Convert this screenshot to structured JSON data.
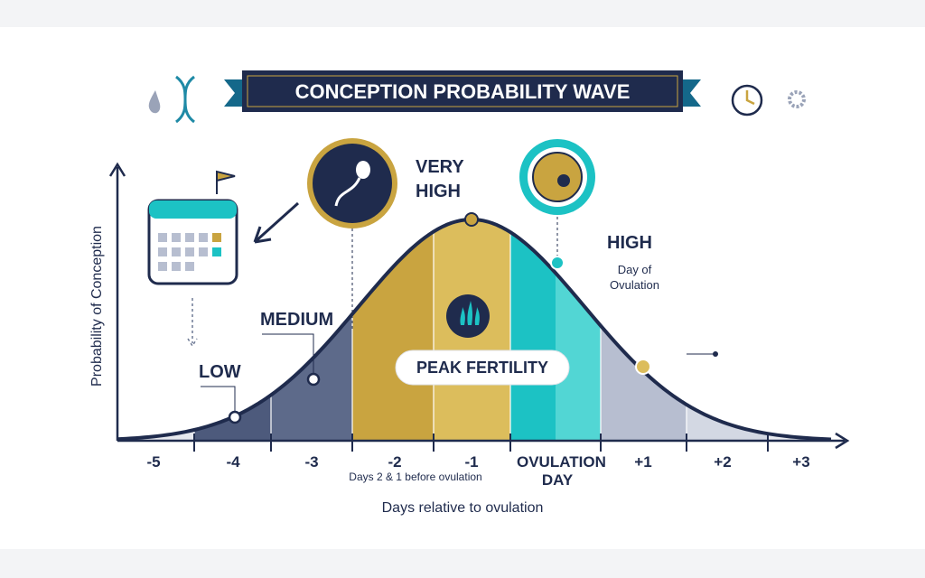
{
  "title": "CONCEPTION PROBABILITY WAVE",
  "y_axis_label": "Probability of Conception",
  "x_axis_label": "Days relative to ovulation",
  "x_labels": [
    "-5",
    "-4",
    "-3",
    "-2",
    "-1",
    "OVULATION DAY",
    "+1",
    "+2",
    "+3"
  ],
  "levels": {
    "low": "LOW",
    "medium": "MEDIUM",
    "very_high": "VERY HIGH",
    "high": "HIGH"
  },
  "annotations": {
    "day_of_ovulation": "Day of Ovulation",
    "peak": "PEAK FERTILITY",
    "before": "Days 2 & 1 before ovulation"
  }
}
